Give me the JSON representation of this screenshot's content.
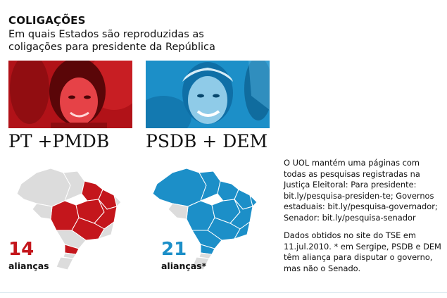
{
  "header": {
    "title": "COLIGAÇÕES",
    "subtitle": "Em quais Estados são reproduzidas as coligações para presidente da República"
  },
  "left": {
    "party": "PT +PMDB",
    "count": "14",
    "count_label": "alianças",
    "color": "#c4161c"
  },
  "right": {
    "party": "PSDB + DEM",
    "count": "21",
    "count_label": "alianças*",
    "color": "#1c8fc8"
  },
  "map_colors": {
    "neutral": "#dcdcdc"
  },
  "notes": {
    "paragraph1": "O UOL mantém uma páginas com todas as pesquisas registradas na Justiça Eleitoral: Para presidente: bit.ly/pesquisa-presiden-te; Governos estaduais: bit.ly/pesquisa-governador; Senador:  bit.ly/pesquisa-senador",
    "paragraph2": "Dados obtidos no site do TSE em 11.jul.2010.  * em Sergipe, PSDB e DEM têm aliança para disputar o governo, mas não o Senado."
  }
}
